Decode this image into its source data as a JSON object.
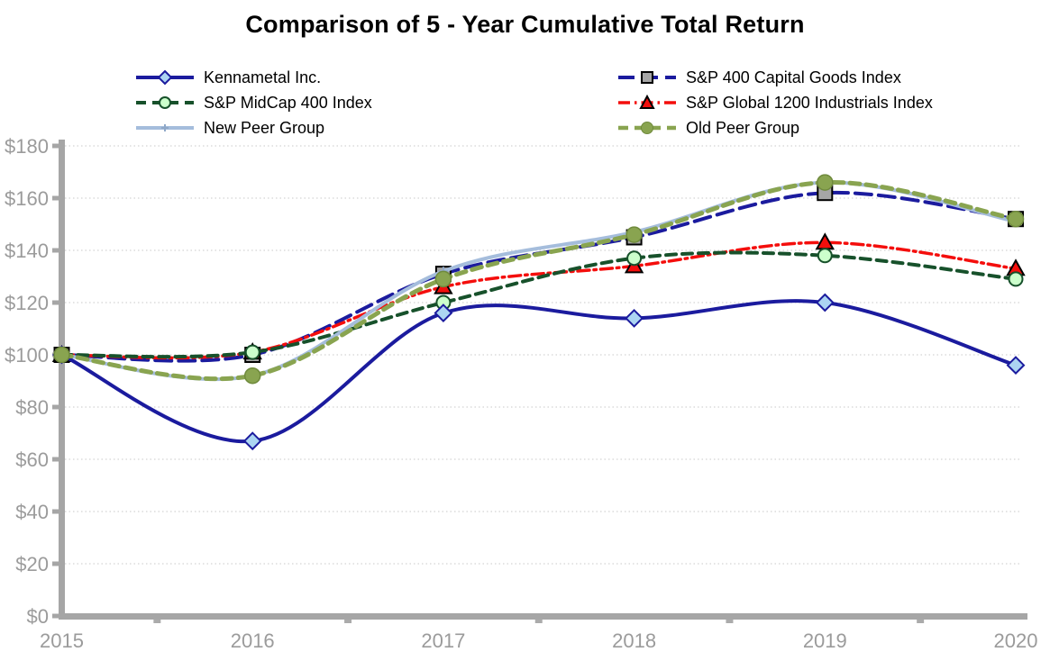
{
  "chart_data": {
    "type": "line",
    "title": "Comparison of 5 - Year Cumulative Total Return",
    "categories": [
      "2015",
      "2016",
      "2017",
      "2018",
      "2019",
      "2020"
    ],
    "y_axis": {
      "min": 0,
      "max": 180,
      "step": 20,
      "prefix": "$",
      "tick_labels": [
        "$0",
        "$20",
        "$40",
        "$60",
        "$80",
        "$100",
        "$120",
        "$140",
        "$160",
        "$180"
      ]
    },
    "grid": "horizontal-dotted",
    "legend_position": "top, two columns",
    "series": [
      {
        "name": "Kennametal Inc.",
        "color": "#1B1B9E",
        "line_style": "solid",
        "line_width": 4,
        "marker": "diamond",
        "marker_fill": "#ACD5F2",
        "marker_stroke": "#1B1B9E",
        "values": [
          100,
          67,
          116,
          114,
          120,
          96
        ]
      },
      {
        "name": "S&P 400 Capital Goods Index",
        "color": "#1B1B9E",
        "line_style": "long-dash",
        "line_width": 4,
        "marker": "square",
        "marker_fill": "#A6A6A6",
        "marker_stroke": "#000000",
        "values": [
          100,
          100,
          131,
          145,
          162,
          152
        ]
      },
      {
        "name": "S&P MidCap 400 Index",
        "color": "#17512B",
        "line_style": "dash",
        "line_width": 4,
        "marker": "circle",
        "marker_fill": "#CCFFCC",
        "marker_stroke": "#17512B",
        "values": [
          100,
          101,
          120,
          137,
          138,
          129
        ]
      },
      {
        "name": "S&P Global 1200 Industrials Index",
        "color": "#F40E0C",
        "line_style": "dash-dot",
        "line_width": 3.5,
        "marker": "triangle",
        "marker_fill": "#F40E0C",
        "marker_stroke": "#000000",
        "values": [
          100,
          101,
          126,
          134,
          143,
          133
        ]
      },
      {
        "name": "New Peer Group",
        "color": "#A5BDDC",
        "line_style": "solid",
        "line_width": 4,
        "marker": "plus",
        "marker_fill": "#A5BDDC",
        "marker_stroke": "#8FA8C8",
        "values": [
          100,
          92,
          132,
          147,
          166,
          151
        ]
      },
      {
        "name": "Old Peer Group",
        "color": "#89A450",
        "line_style": "dash",
        "line_width": 5,
        "marker": "dot",
        "marker_fill": "#89A450",
        "marker_stroke": "#6F8A3C",
        "values": [
          100,
          92,
          129,
          146,
          166,
          152
        ]
      }
    ],
    "legend_columns": [
      [
        0,
        2,
        4
      ],
      [
        1,
        3,
        5
      ]
    ],
    "draw_order": [
      1,
      3,
      2,
      0,
      4,
      5
    ],
    "colors": {
      "axis": "#A6A6A6",
      "minor_tick": "#ABABAB",
      "tick_label": "#9B9B9B",
      "gridline": "#C8C8C8",
      "title": "#000000",
      "legend_text": "#000000",
      "background": "#FFFFFF"
    }
  }
}
